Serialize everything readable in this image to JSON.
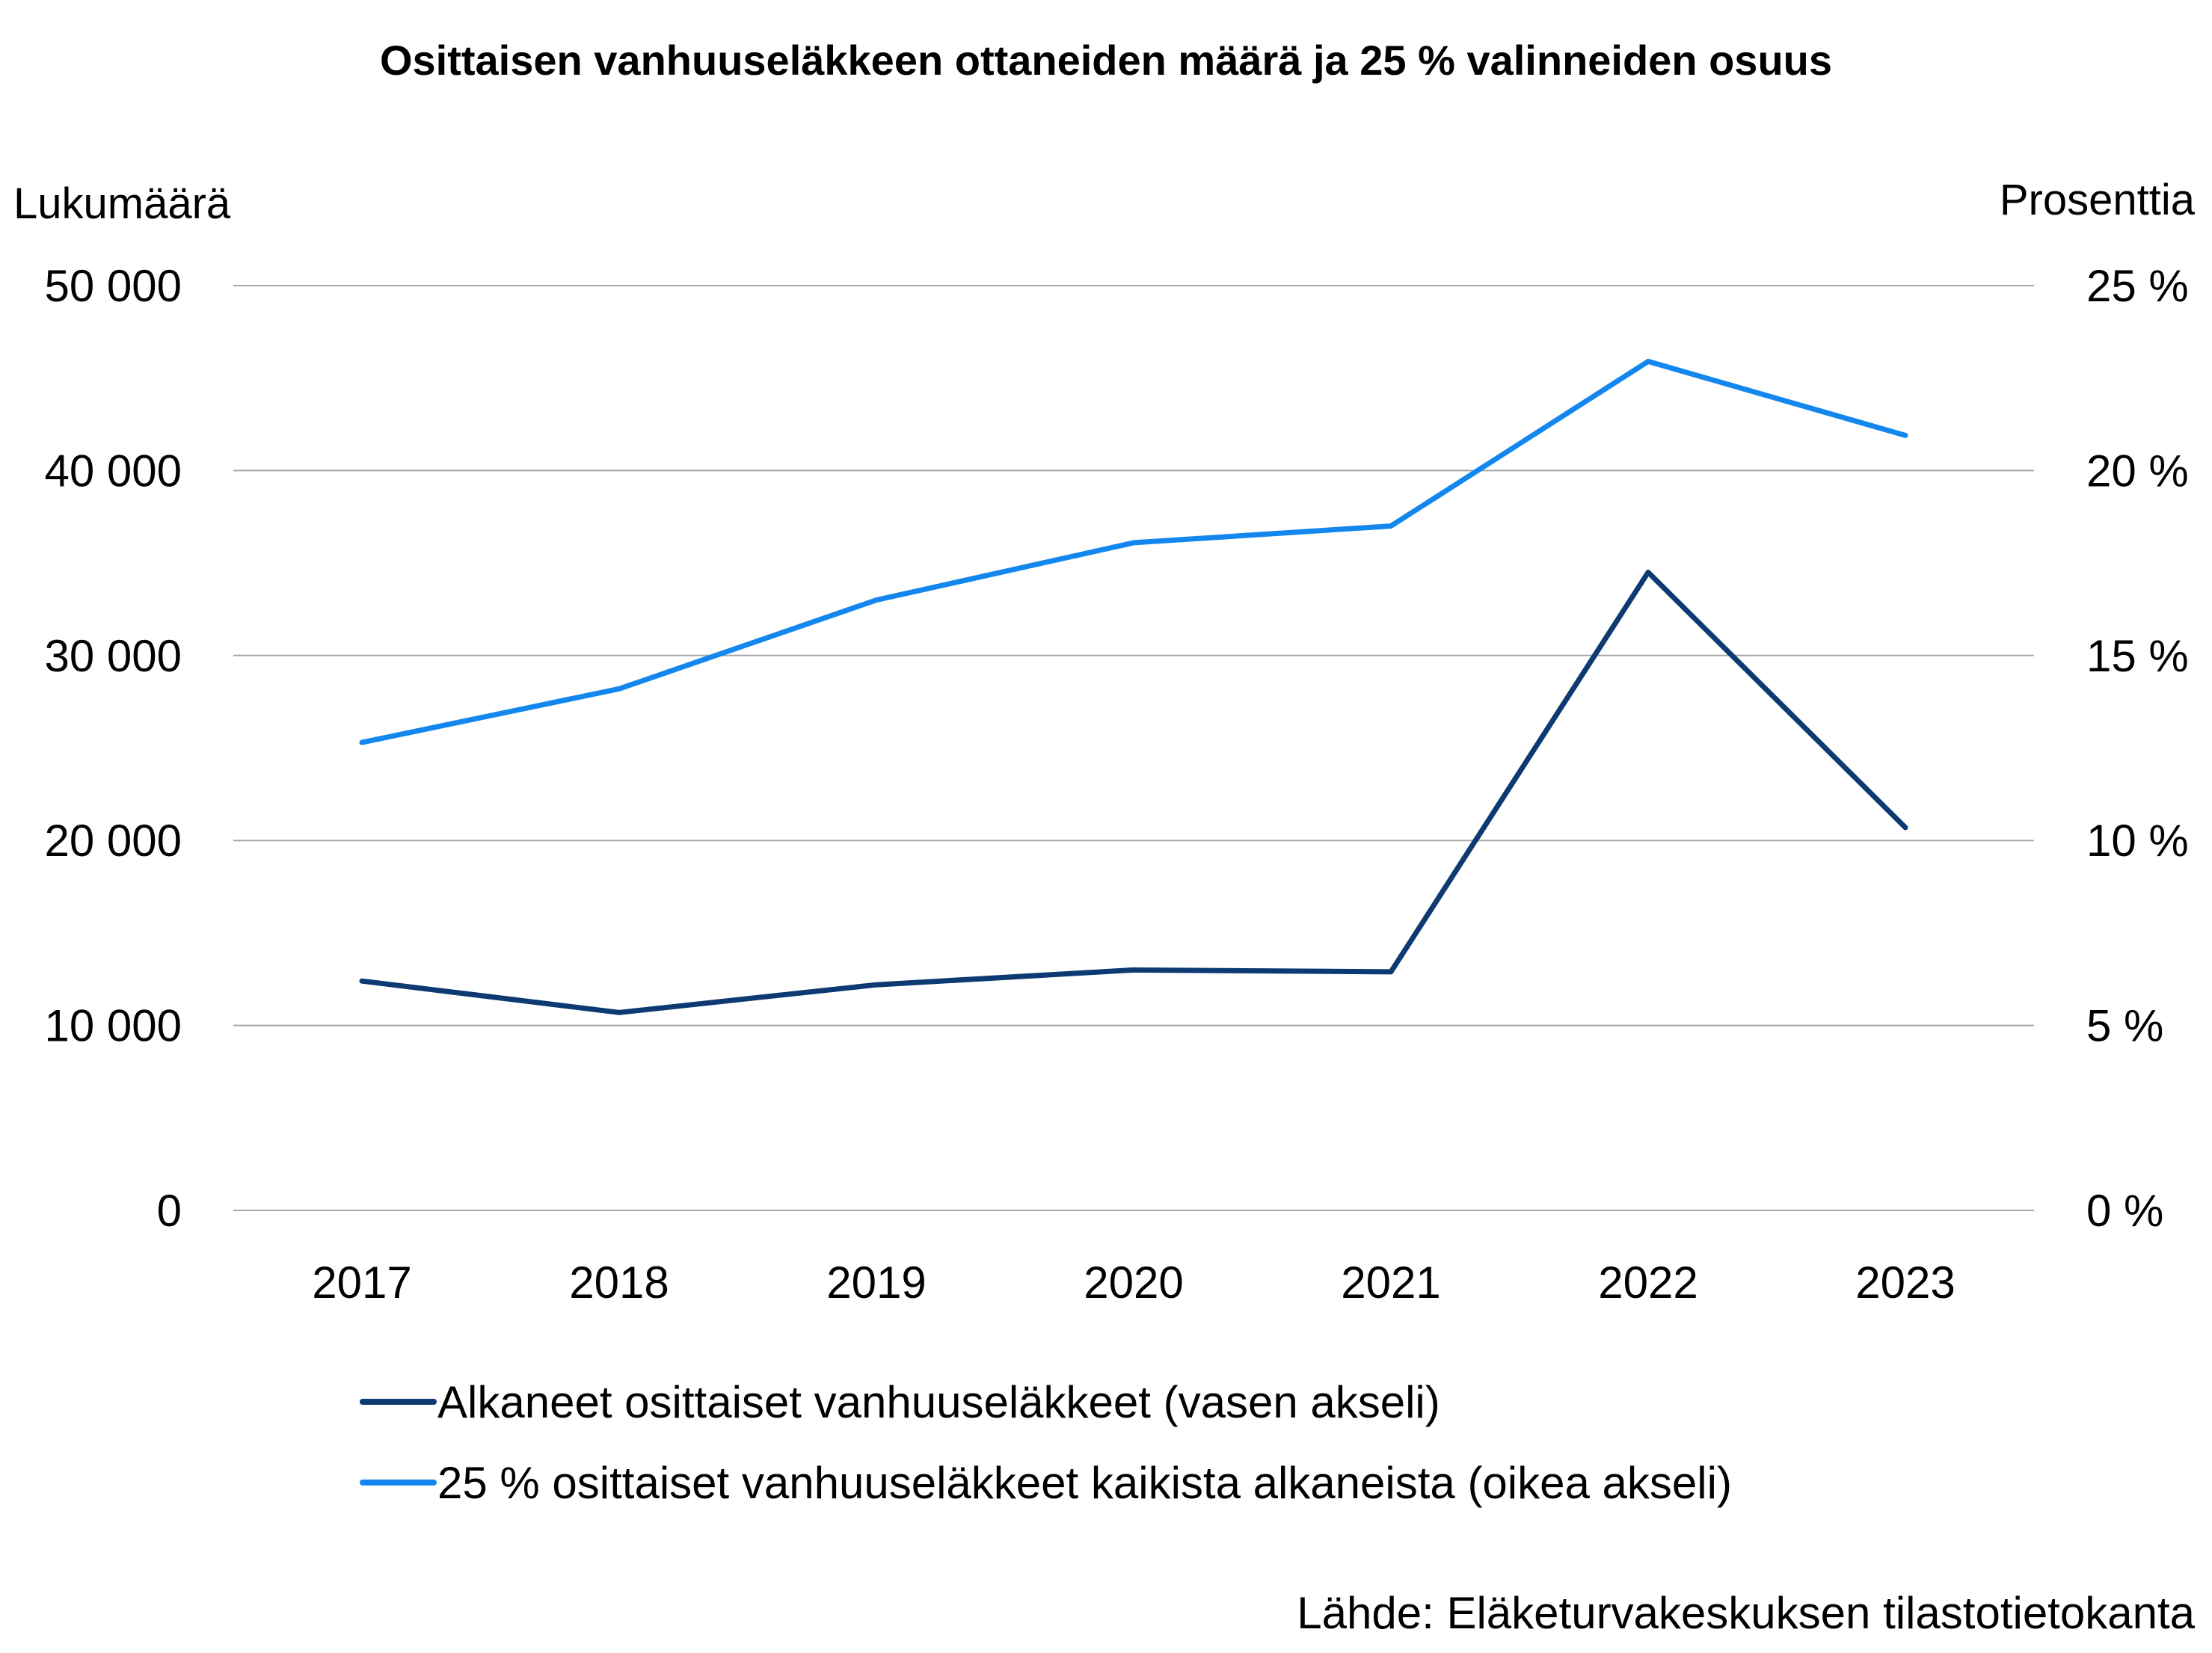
{
  "chart_data": {
    "type": "line",
    "title": "Osittaisen vanhuuseläkkeen ottaneiden määrä ja 25 % valinneiden osuus",
    "ylabel_left": "Lukumäärä",
    "ylabel_right": "Prosenttia",
    "categories": [
      "2017",
      "2018",
      "2019",
      "2020",
      "2021",
      "2022",
      "2023"
    ],
    "ylim_left": [
      0,
      50000
    ],
    "ylim_right": [
      0,
      25
    ],
    "yticks_left": [
      "0",
      "10 000",
      "20 000",
      "30 000",
      "40 000",
      "50 000"
    ],
    "yticks_right": [
      "0 %",
      "5 %",
      "10 %",
      "15 %",
      "20 %",
      "25 %"
    ],
    "grid": true,
    "legend_position": "bottom",
    "series": [
      {
        "name": "Alkaneet osittaiset vanhuuseläkkeet (vasen akseli)",
        "axis": "left",
        "color": "#0d3a72",
        "values": [
          12400,
          10700,
          12200,
          13000,
          12900,
          34500,
          20700
        ]
      },
      {
        "name": "25 % osittaiset vanhuuseläkkeet kaikista alkaneista (oikea akseli)",
        "axis": "right",
        "color": "#1387ee",
        "values": [
          12.65,
          14.1,
          16.5,
          18.05,
          18.5,
          22.95,
          20.95
        ]
      }
    ],
    "source": "Lähde: Eläketurvakeskuksen tilastotietokanta"
  }
}
